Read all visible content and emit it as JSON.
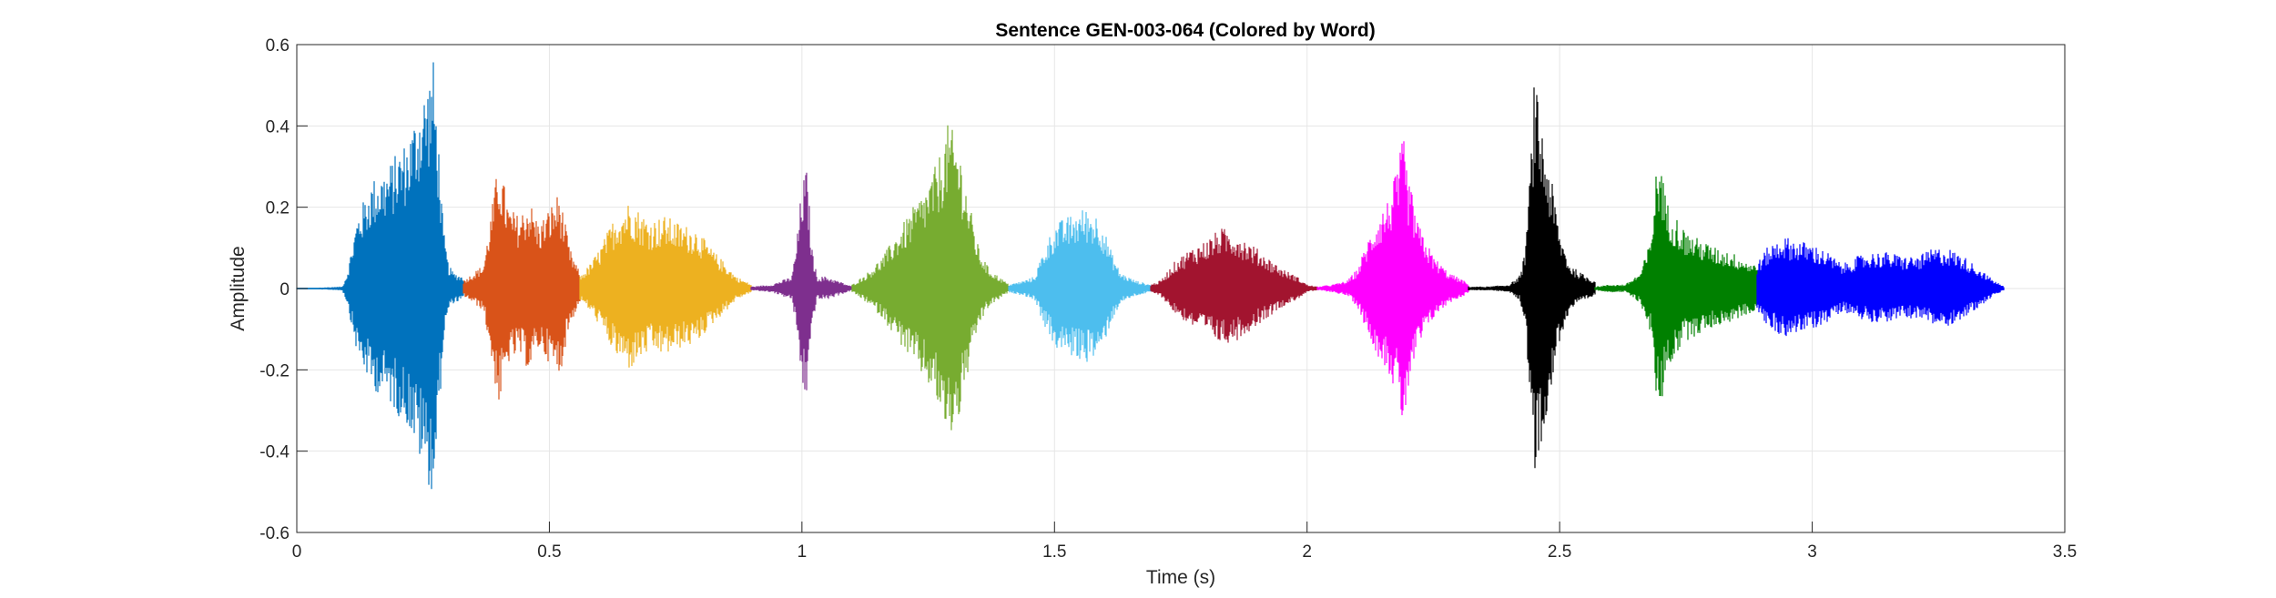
{
  "chart_data": {
    "type": "line",
    "title": "Sentence GEN-003-064 (Colored by Word)",
    "xlabel": "Time (s)",
    "ylabel": "Amplitude",
    "xlim": [
      0,
      3.5
    ],
    "ylim": [
      -0.6,
      0.6
    ],
    "xticks": [
      0,
      0.5,
      1,
      1.5,
      2,
      2.5,
      3,
      3.5
    ],
    "xtick_labels": [
      "0",
      "0.5",
      "1",
      "1.5",
      "2",
      "2.5",
      "3",
      "3.5"
    ],
    "yticks": [
      -0.6,
      -0.4,
      -0.2,
      0,
      0.2,
      0.4,
      0.6
    ],
    "ytick_labels": [
      "-0.6",
      "-0.4",
      "-0.2",
      "0",
      "0.2",
      "0.4",
      "0.6"
    ],
    "grid": true,
    "series": [
      {
        "color": "#0072BD",
        "t_start": 0.0,
        "t_end": 0.33,
        "env": [
          [
            0.0,
            0.0
          ],
          [
            0.09,
            0.005
          ],
          [
            0.1,
            0.04
          ],
          [
            0.12,
            0.18
          ],
          [
            0.15,
            0.27
          ],
          [
            0.18,
            0.3
          ],
          [
            0.2,
            0.34
          ],
          [
            0.22,
            0.37
          ],
          [
            0.24,
            0.45
          ],
          [
            0.26,
            0.52
          ],
          [
            0.27,
            0.57
          ],
          [
            0.28,
            0.38
          ],
          [
            0.29,
            0.15
          ],
          [
            0.3,
            0.06
          ],
          [
            0.31,
            0.04
          ],
          [
            0.33,
            0.03
          ]
        ]
      },
      {
        "color": "#D95319",
        "t_start": 0.33,
        "t_end": 0.56,
        "env": [
          [
            0.33,
            0.02
          ],
          [
            0.35,
            0.04
          ],
          [
            0.37,
            0.06
          ],
          [
            0.4,
            0.32
          ],
          [
            0.42,
            0.2
          ],
          [
            0.44,
            0.18
          ],
          [
            0.46,
            0.22
          ],
          [
            0.48,
            0.16
          ],
          [
            0.5,
            0.2
          ],
          [
            0.52,
            0.24
          ],
          [
            0.54,
            0.1
          ],
          [
            0.56,
            0.04
          ]
        ]
      },
      {
        "color": "#EDB120",
        "t_start": 0.56,
        "t_end": 0.9,
        "env": [
          [
            0.56,
            0.03
          ],
          [
            0.58,
            0.06
          ],
          [
            0.6,
            0.1
          ],
          [
            0.63,
            0.18
          ],
          [
            0.66,
            0.22
          ],
          [
            0.68,
            0.19
          ],
          [
            0.7,
            0.17
          ],
          [
            0.73,
            0.18
          ],
          [
            0.76,
            0.16
          ],
          [
            0.79,
            0.15
          ],
          [
            0.82,
            0.1
          ],
          [
            0.85,
            0.06
          ],
          [
            0.87,
            0.03
          ],
          [
            0.9,
            0.01
          ]
        ]
      },
      {
        "color": "#7E2F8E",
        "t_start": 0.9,
        "t_end": 1.1,
        "env": [
          [
            0.9,
            0.005
          ],
          [
            0.94,
            0.01
          ],
          [
            0.96,
            0.02
          ],
          [
            0.98,
            0.03
          ],
          [
            0.99,
            0.12
          ],
          [
            1.0,
            0.26
          ],
          [
            1.01,
            0.3
          ],
          [
            1.02,
            0.1
          ],
          [
            1.03,
            0.03
          ],
          [
            1.05,
            0.03
          ],
          [
            1.07,
            0.02
          ],
          [
            1.1,
            0.005
          ]
        ]
      },
      {
        "color": "#77AC30",
        "t_start": 1.1,
        "t_end": 1.41,
        "env": [
          [
            1.1,
            0.01
          ],
          [
            1.13,
            0.04
          ],
          [
            1.16,
            0.08
          ],
          [
            1.19,
            0.14
          ],
          [
            1.22,
            0.2
          ],
          [
            1.25,
            0.26
          ],
          [
            1.27,
            0.32
          ],
          [
            1.29,
            0.41
          ],
          [
            1.31,
            0.36
          ],
          [
            1.33,
            0.22
          ],
          [
            1.35,
            0.1
          ],
          [
            1.37,
            0.05
          ],
          [
            1.4,
            0.02
          ],
          [
            1.41,
            0.01
          ]
        ]
      },
      {
        "color": "#4DBEEE",
        "t_start": 1.41,
        "t_end": 1.69,
        "env": [
          [
            1.41,
            0.01
          ],
          [
            1.44,
            0.02
          ],
          [
            1.46,
            0.03
          ],
          [
            1.48,
            0.1
          ],
          [
            1.5,
            0.16
          ],
          [
            1.53,
            0.18
          ],
          [
            1.56,
            0.2
          ],
          [
            1.59,
            0.18
          ],
          [
            1.61,
            0.1
          ],
          [
            1.63,
            0.04
          ],
          [
            1.66,
            0.02
          ],
          [
            1.69,
            0.01
          ]
        ]
      },
      {
        "color": "#A2142F",
        "t_start": 1.69,
        "t_end": 2.02,
        "env": [
          [
            1.69,
            0.01
          ],
          [
            1.71,
            0.02
          ],
          [
            1.74,
            0.07
          ],
          [
            1.77,
            0.1
          ],
          [
            1.8,
            0.12
          ],
          [
            1.83,
            0.15
          ],
          [
            1.86,
            0.14
          ],
          [
            1.89,
            0.11
          ],
          [
            1.92,
            0.08
          ],
          [
            1.95,
            0.05
          ],
          [
            1.98,
            0.03
          ],
          [
            2.0,
            0.01
          ],
          [
            2.02,
            0.005
          ]
        ]
      },
      {
        "color": "#FF00FF",
        "t_start": 2.02,
        "t_end": 2.32,
        "env": [
          [
            2.02,
            0.005
          ],
          [
            2.05,
            0.01
          ],
          [
            2.08,
            0.02
          ],
          [
            2.1,
            0.05
          ],
          [
            2.12,
            0.12
          ],
          [
            2.14,
            0.18
          ],
          [
            2.16,
            0.22
          ],
          [
            2.18,
            0.3
          ],
          [
            2.19,
            0.38
          ],
          [
            2.2,
            0.28
          ],
          [
            2.22,
            0.16
          ],
          [
            2.25,
            0.08
          ],
          [
            2.28,
            0.04
          ],
          [
            2.31,
            0.02
          ],
          [
            2.32,
            0.01
          ]
        ]
      },
      {
        "color": "#000000",
        "t_start": 2.32,
        "t_end": 2.57,
        "env": [
          [
            2.32,
            0.005
          ],
          [
            2.36,
            0.005
          ],
          [
            2.4,
            0.01
          ],
          [
            2.42,
            0.03
          ],
          [
            2.43,
            0.08
          ],
          [
            2.44,
            0.25
          ],
          [
            2.45,
            0.52
          ],
          [
            2.46,
            0.44
          ],
          [
            2.47,
            0.36
          ],
          [
            2.48,
            0.3
          ],
          [
            2.49,
            0.22
          ],
          [
            2.5,
            0.14
          ],
          [
            2.52,
            0.06
          ],
          [
            2.54,
            0.04
          ],
          [
            2.57,
            0.02
          ]
        ]
      },
      {
        "color": "#008000",
        "t_start": 2.57,
        "t_end": 2.89,
        "env": [
          [
            2.57,
            0.005
          ],
          [
            2.6,
            0.01
          ],
          [
            2.63,
            0.01
          ],
          [
            2.66,
            0.04
          ],
          [
            2.68,
            0.12
          ],
          [
            2.69,
            0.28
          ],
          [
            2.7,
            0.34
          ],
          [
            2.71,
            0.22
          ],
          [
            2.73,
            0.18
          ],
          [
            2.75,
            0.14
          ],
          [
            2.78,
            0.12
          ],
          [
            2.81,
            0.1
          ],
          [
            2.84,
            0.09
          ],
          [
            2.87,
            0.07
          ],
          [
            2.89,
            0.06
          ]
        ]
      },
      {
        "color": "#0000FF",
        "t_start": 2.89,
        "t_end": 3.38,
        "env": [
          [
            2.89,
            0.06
          ],
          [
            2.91,
            0.1
          ],
          [
            2.94,
            0.13
          ],
          [
            2.97,
            0.12
          ],
          [
            3.0,
            0.11
          ],
          [
            3.03,
            0.09
          ],
          [
            3.06,
            0.06
          ],
          [
            3.09,
            0.08
          ],
          [
            3.12,
            0.09
          ],
          [
            3.15,
            0.09
          ],
          [
            3.18,
            0.08
          ],
          [
            3.21,
            0.08
          ],
          [
            3.24,
            0.1
          ],
          [
            3.27,
            0.1
          ],
          [
            3.3,
            0.08
          ],
          [
            3.33,
            0.05
          ],
          [
            3.36,
            0.02
          ],
          [
            3.38,
            0.005
          ]
        ]
      }
    ]
  }
}
